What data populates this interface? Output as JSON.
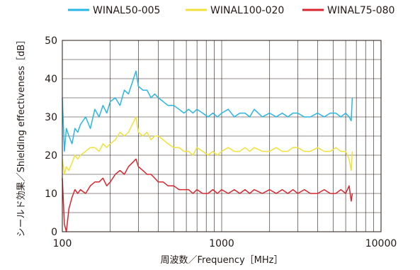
{
  "chart_data": {
    "type": "line",
    "xlabel": "周波数／Frequency［MHz］",
    "ylabel": "シールド効果／Shielding effectiveness［dB］",
    "xscale": "log",
    "xlim": [
      100,
      10000
    ],
    "ylim": [
      0,
      50
    ],
    "x_ticks": [
      "100",
      "1000",
      "10000"
    ],
    "y_ticks": [
      "0",
      "10",
      "20",
      "30",
      "40",
      "50"
    ],
    "grid": true,
    "legend_position": "top",
    "series": [
      {
        "name": "WINAL50-005",
        "color": "#29b6e5",
        "x": [
          100,
          103,
          106,
          110,
          115,
          120,
          125,
          130,
          140,
          150,
          160,
          170,
          180,
          190,
          200,
          215,
          230,
          245,
          260,
          275,
          290,
          300,
          320,
          340,
          360,
          380,
          400,
          430,
          460,
          500,
          540,
          580,
          620,
          660,
          700,
          760,
          820,
          880,
          940,
          1000,
          1100,
          1200,
          1300,
          1400,
          1500,
          1600,
          1800,
          2000,
          2200,
          2400,
          2600,
          2800,
          3000,
          3300,
          3600,
          4000,
          4400,
          4800,
          5200,
          5600,
          6000,
          6300,
          6500,
          6600
        ],
        "y": [
          35,
          21,
          27,
          25,
          23,
          27,
          26,
          28,
          30,
          27,
          32,
          30,
          33,
          31,
          34,
          35,
          33,
          37,
          36,
          39,
          42,
          38,
          37,
          37,
          35,
          36,
          35,
          34,
          33,
          33,
          32,
          31,
          32,
          31,
          32,
          31,
          30,
          31,
          30,
          31,
          32,
          30,
          31,
          31,
          30,
          32,
          30,
          31,
          30,
          31,
          30,
          31,
          31,
          30,
          30,
          31,
          30,
          31,
          31,
          30,
          31,
          30,
          29,
          35
        ]
      },
      {
        "name": "WINAL100-020",
        "color": "#f0e13c",
        "x": [
          100,
          103,
          106,
          110,
          115,
          120,
          125,
          130,
          140,
          150,
          160,
          170,
          180,
          190,
          200,
          215,
          230,
          245,
          260,
          275,
          290,
          300,
          320,
          340,
          360,
          380,
          400,
          430,
          460,
          500,
          540,
          580,
          620,
          660,
          700,
          760,
          820,
          880,
          940,
          1000,
          1100,
          1200,
          1300,
          1400,
          1500,
          1600,
          1800,
          2000,
          2200,
          2400,
          2600,
          2800,
          3000,
          3300,
          3600,
          4000,
          4400,
          4800,
          5200,
          5600,
          6000,
          6300,
          6500,
          6600
        ],
        "y": [
          19,
          15,
          17,
          16,
          18,
          20,
          19,
          20,
          21,
          22,
          22,
          21,
          23,
          22,
          23,
          24,
          26,
          25,
          26,
          28,
          30,
          26,
          25,
          26,
          24,
          25,
          25,
          24,
          23,
          22,
          22,
          21,
          21,
          20,
          22,
          21,
          20,
          21,
          20,
          21,
          22,
          21,
          21,
          22,
          21,
          22,
          21,
          21,
          22,
          21,
          21,
          22,
          22,
          21,
          21,
          22,
          21,
          21,
          22,
          21,
          21,
          19,
          16,
          21
        ]
      },
      {
        "name": "WINAL75-080",
        "color": "#d7262e",
        "x": [
          100,
          103,
          106,
          110,
          115,
          120,
          125,
          130,
          140,
          150,
          160,
          170,
          180,
          190,
          200,
          215,
          230,
          245,
          260,
          275,
          290,
          300,
          320,
          340,
          360,
          380,
          400,
          430,
          460,
          500,
          540,
          580,
          620,
          660,
          700,
          760,
          820,
          880,
          940,
          1000,
          1100,
          1200,
          1300,
          1400,
          1500,
          1600,
          1800,
          2000,
          2200,
          2400,
          2600,
          2800,
          3000,
          3300,
          3600,
          4000,
          4400,
          4800,
          5200,
          5600,
          6000,
          6300,
          6500,
          6600
        ],
        "y": [
          14,
          2,
          0,
          6,
          9,
          11,
          10,
          11,
          10,
          12,
          13,
          13,
          14,
          12,
          13,
          15,
          16,
          15,
          17,
          18,
          19,
          17,
          16,
          15,
          15,
          14,
          13,
          13,
          12,
          12,
          11,
          11,
          11,
          10,
          11,
          10,
          10,
          11,
          10,
          11,
          10,
          11,
          10,
          11,
          10,
          11,
          10,
          11,
          10,
          11,
          10,
          11,
          10,
          11,
          10,
          10,
          11,
          10,
          10,
          11,
          10,
          12,
          8,
          10
        ]
      }
    ]
  }
}
